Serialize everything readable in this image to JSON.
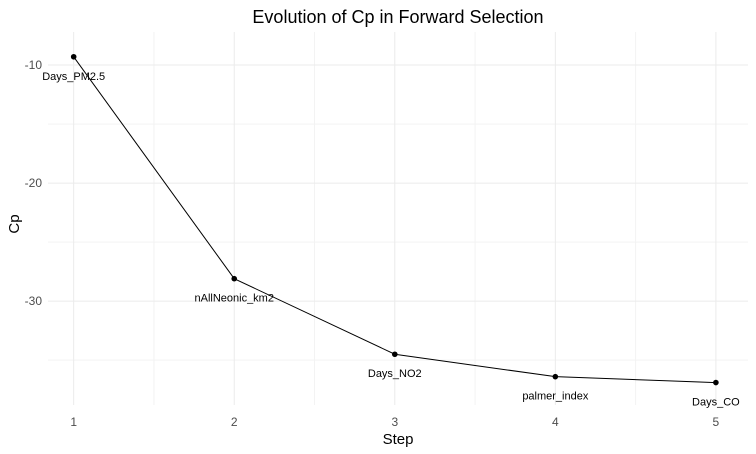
{
  "chart_data": {
    "type": "line",
    "title": "Evolution of Cp in Forward Selection",
    "xlabel": "Step",
    "ylabel": "Cp",
    "x": [
      1,
      2,
      3,
      4,
      5
    ],
    "y": [
      -9.3,
      -28.1,
      -34.5,
      -36.4,
      -36.9
    ],
    "point_labels": [
      "Days_PM2.5",
      "nAllNeonic_km2",
      "Days_NO2",
      "palmer_index",
      "Days_CO"
    ],
    "x_ticks": [
      1,
      2,
      3,
      4,
      5
    ],
    "y_ticks": [
      -10,
      -20,
      -30
    ],
    "xlim": [
      0.84,
      5.2
    ],
    "ylim": [
      -38.8,
      -7.2
    ],
    "grid": true,
    "line_color": "#000000",
    "point_color": "#000000"
  }
}
